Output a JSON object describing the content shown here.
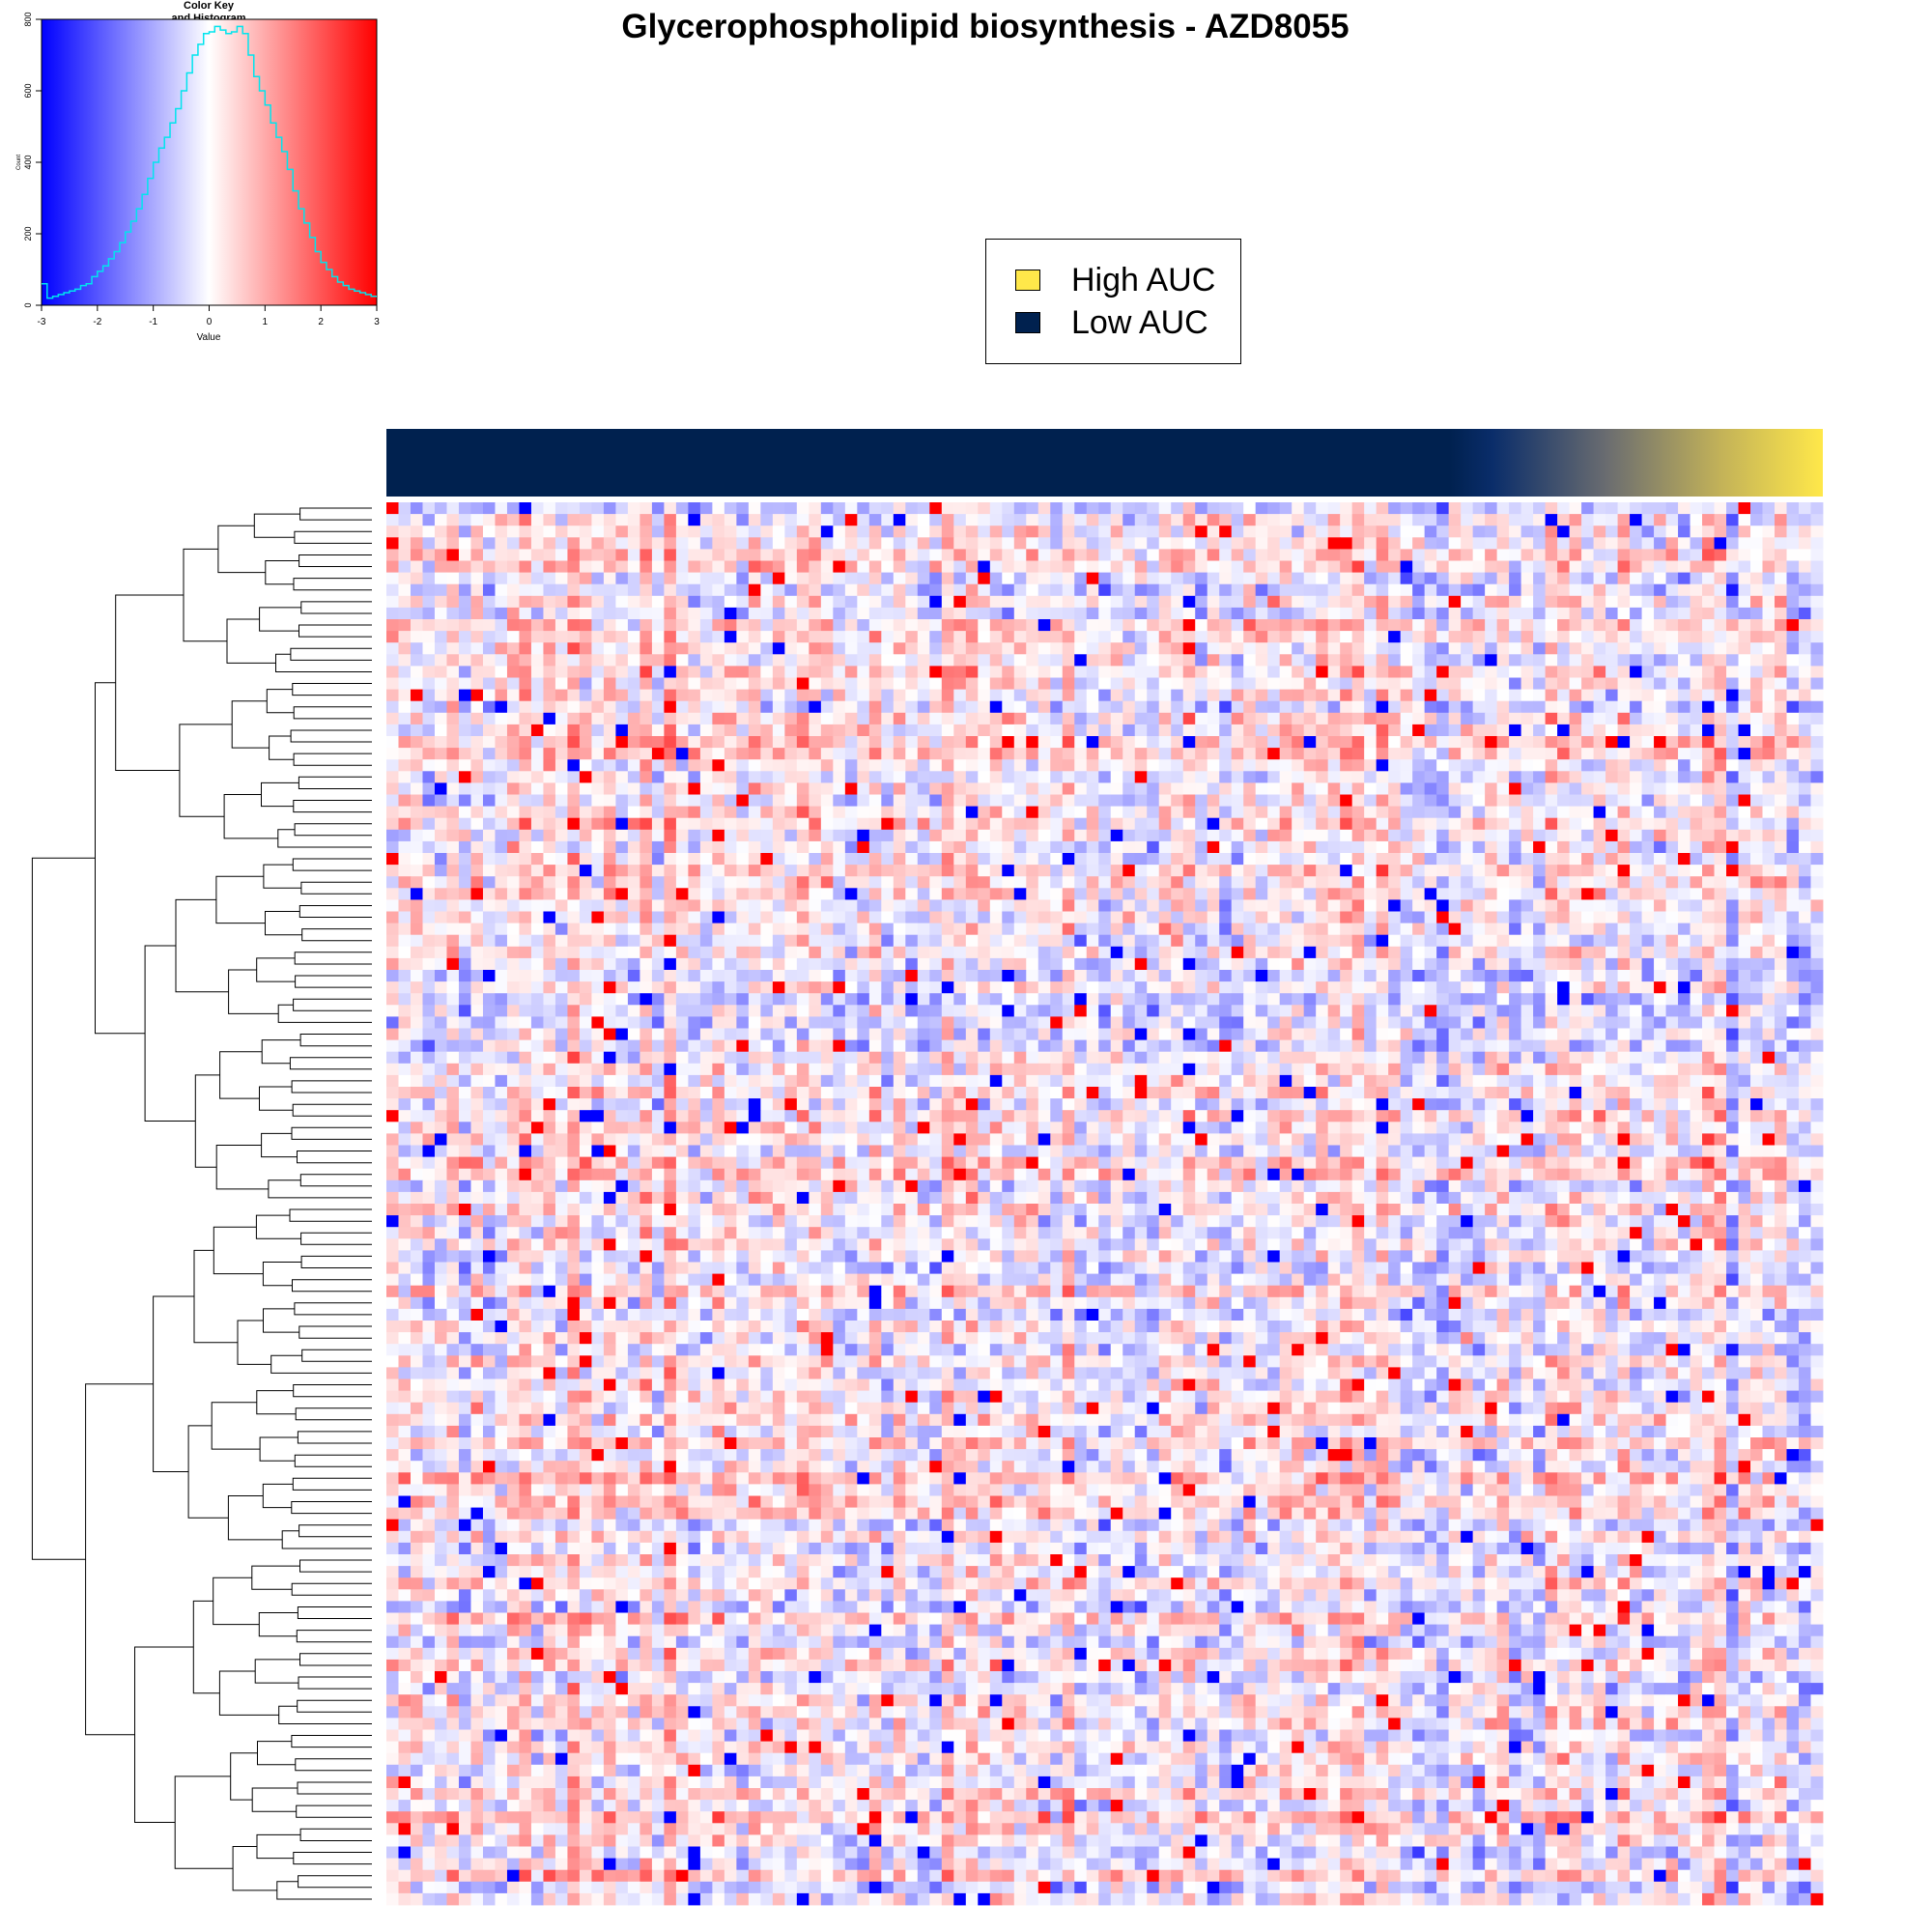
{
  "title": "Glycerophospholipid biosynthesis - AZD8055",
  "legend": {
    "items": [
      {
        "label": "High AUC",
        "color": "#FFE84A"
      },
      {
        "label": "Low AUC",
        "color": "#00214F"
      }
    ]
  },
  "color_key": {
    "title_line1": "Color Key",
    "title_line2": "and Histogram",
    "xlabel": "Value",
    "ylabel": "Count",
    "x_ticks": [
      "-3",
      "-2",
      "-1",
      "0",
      "1",
      "2",
      "3"
    ],
    "y_ticks": [
      "0",
      "200",
      "400",
      "600",
      "800"
    ],
    "low_color": "#0000FF",
    "mid_color": "#FFFFFF",
    "high_color": "#FF0000",
    "hist_color": "#00E5EE"
  },
  "chart_data": [
    {
      "type": "heatmap",
      "title": "Glycerophospholipid biosynthesis - AZD8055",
      "n_rows": 120,
      "n_cols": 119,
      "value_range": [
        -3,
        3
      ],
      "column_annotation": {
        "low_label": "Low AUC",
        "high_label": "High AUC",
        "low_color": "#00214F",
        "high_color": "#FFE84A"
      },
      "row_dendrogram": true
    },
    {
      "type": "bar",
      "title": "Color Key and Histogram",
      "xlabel": "Value",
      "ylabel": "Count",
      "xlim": [
        -3,
        3
      ],
      "ylim": [
        0,
        800
      ],
      "bin_width": 0.1,
      "values": [
        60,
        20,
        25,
        30,
        35,
        40,
        45,
        55,
        60,
        80,
        95,
        110,
        130,
        150,
        175,
        205,
        235,
        270,
        310,
        355,
        400,
        440,
        470,
        510,
        550,
        600,
        650,
        700,
        730,
        760,
        765,
        780,
        770,
        760,
        765,
        780,
        760,
        700,
        640,
        600,
        560,
        510,
        470,
        430,
        380,
        320,
        270,
        230,
        190,
        150,
        120,
        100,
        80,
        65,
        55,
        45,
        40,
        35,
        30,
        25
      ]
    }
  ]
}
